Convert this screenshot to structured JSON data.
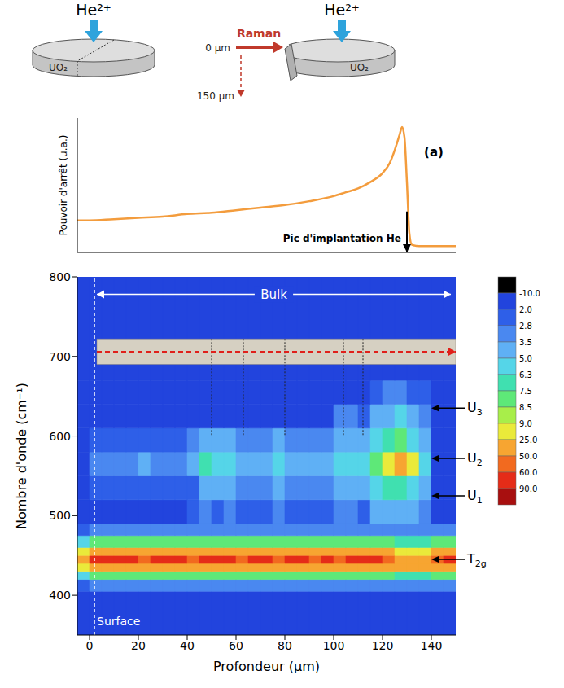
{
  "schematic": {
    "beam_label": "He²⁺",
    "sample_label": "UO₂",
    "probe_label": "Raman",
    "depth_start": "0 µm",
    "depth_end": "150 µm"
  },
  "chart_data": [
    {
      "type": "line",
      "y_label": "Pouvoir d'arrêt (u.a.)",
      "x": [
        -5,
        0,
        10,
        20,
        30,
        40,
        50,
        60,
        70,
        80,
        90,
        100,
        105,
        110,
        115,
        120,
        123,
        125,
        127,
        128,
        129,
        130,
        131,
        132,
        135,
        140,
        145,
        150
      ],
      "values": [
        0.25,
        0.25,
        0.26,
        0.27,
        0.28,
        0.3,
        0.31,
        0.33,
        0.35,
        0.37,
        0.4,
        0.44,
        0.47,
        0.5,
        0.55,
        0.62,
        0.7,
        0.8,
        0.92,
        0.98,
        0.9,
        0.55,
        0.15,
        0.06,
        0.05,
        0.05,
        0.05,
        0.05
      ],
      "color": "#f39c3d",
      "xlim": [
        -5,
        150
      ],
      "ylim": [
        0,
        1.05
      ],
      "xticks": [
        0,
        10,
        20,
        30,
        40,
        50,
        60,
        70,
        80,
        90,
        100,
        110,
        120,
        130,
        140,
        150
      ],
      "tick_labels": false,
      "annotations": [
        {
          "text": "(a)",
          "x": 141,
          "y": 0.75
        },
        {
          "text": "Pic d'implantation He",
          "x": 130,
          "y": 0.08,
          "arrow": [
            0.32,
            0
          ]
        }
      ]
    },
    {
      "type": "heatmap",
      "x_label": "Profondeur (µm)",
      "y_label": "Nombre d'onde (cm⁻¹)",
      "xlim": [
        -5,
        150
      ],
      "ylim": [
        350,
        800
      ],
      "xticks": [
        0,
        20,
        40,
        60,
        80,
        100,
        120,
        140
      ],
      "yticks": [
        400,
        500,
        600,
        700,
        800
      ],
      "x_edges": [
        -5,
        0,
        5,
        10,
        15,
        20,
        25,
        30,
        35,
        40,
        45,
        50,
        55,
        60,
        65,
        70,
        75,
        80,
        85,
        90,
        95,
        100,
        105,
        110,
        115,
        120,
        125,
        130,
        135,
        140,
        145,
        150
      ],
      "y_edges": [
        350,
        405,
        420,
        430,
        440,
        450,
        460,
        475,
        490,
        520,
        550,
        580,
        610,
        640,
        670,
        800
      ],
      "cells": [
        [
          1,
          1,
          1,
          1,
          1,
          1,
          1,
          1,
          1,
          1,
          1,
          1,
          1,
          1,
          1,
          1,
          1,
          1,
          1,
          1,
          1,
          1,
          1,
          1,
          1,
          1,
          1,
          1,
          1,
          1,
          1
        ],
        [
          2.5,
          3,
          3,
          3,
          3,
          3,
          3,
          3,
          3,
          3,
          3,
          3,
          3,
          3,
          3,
          3,
          3,
          3,
          3,
          3,
          3,
          3,
          3,
          3,
          3,
          3,
          3,
          3,
          3,
          3,
          3
        ],
        [
          5,
          8,
          8,
          8,
          8,
          8,
          8,
          8,
          8,
          8,
          8,
          8,
          8,
          8,
          8,
          8,
          8,
          8,
          8,
          8,
          8,
          8,
          8,
          8,
          8,
          8,
          7,
          7,
          7,
          8,
          8
        ],
        [
          20,
          30,
          30,
          30,
          30,
          30,
          30,
          30,
          30,
          30,
          30,
          30,
          30,
          30,
          30,
          30,
          30,
          30,
          30,
          30,
          30,
          30,
          30,
          30,
          30,
          30,
          25,
          25,
          25,
          30,
          30
        ],
        [
          40,
          70,
          70,
          70,
          70,
          55,
          70,
          70,
          70,
          55,
          70,
          70,
          70,
          55,
          70,
          70,
          55,
          70,
          70,
          55,
          70,
          55,
          70,
          70,
          60,
          55,
          45,
          40,
          45,
          55,
          60
        ],
        [
          20,
          30,
          30,
          30,
          30,
          30,
          30,
          30,
          30,
          30,
          30,
          30,
          30,
          30,
          30,
          30,
          30,
          30,
          30,
          30,
          30,
          30,
          30,
          30,
          30,
          30,
          22,
          22,
          22,
          30,
          30
        ],
        [
          5,
          8,
          8,
          8,
          8,
          8,
          8,
          8,
          8,
          8,
          8,
          8,
          8,
          8,
          8,
          8,
          8,
          8,
          8,
          8,
          8,
          8,
          8,
          8,
          8,
          8,
          7,
          7,
          7,
          8,
          8
        ],
        [
          2.5,
          3,
          3,
          3,
          3,
          3,
          3,
          3,
          3,
          3,
          3,
          3,
          3,
          3,
          3,
          3,
          3,
          3,
          3,
          3,
          3,
          3,
          3,
          3,
          3,
          3,
          3,
          3,
          3,
          3,
          3
        ],
        [
          1,
          1,
          1,
          1,
          1,
          1,
          1,
          1,
          1,
          2.5,
          3,
          2.5,
          3,
          2.5,
          2.5,
          2.5,
          3,
          2.5,
          2.5,
          2.5,
          2.5,
          3,
          3,
          2.5,
          3.5,
          3.5,
          3.5,
          3.5,
          3,
          1,
          1
        ],
        [
          1,
          2.2,
          2.2,
          2.2,
          2.2,
          2.2,
          2.2,
          2.2,
          2.2,
          2.5,
          4,
          3.5,
          4,
          3,
          3,
          3,
          4,
          3,
          3,
          3,
          3,
          4,
          4,
          3.5,
          5,
          6.3,
          7,
          6,
          4,
          1.5,
          1
        ],
        [
          1,
          3,
          3,
          3,
          3,
          3.5,
          3,
          3,
          3,
          4,
          6.5,
          5,
          6,
          4,
          4,
          4,
          5,
          4,
          4,
          4,
          4,
          5,
          5.5,
          5,
          8,
          20,
          30,
          12,
          5,
          1.5,
          1
        ],
        [
          1,
          2.5,
          2.5,
          2.5,
          2.5,
          2.5,
          2.5,
          2.5,
          2.5,
          3,
          4,
          3.5,
          4,
          3,
          3,
          3,
          3.5,
          3,
          3,
          3,
          3,
          3.5,
          4,
          3.5,
          5,
          6.5,
          8,
          6,
          3.5,
          1.5,
          1
        ],
        [
          1,
          1,
          1,
          1,
          1,
          1,
          1,
          1,
          1,
          1,
          1,
          1,
          1,
          1,
          1,
          1,
          1,
          1,
          1,
          1,
          1,
          2.8,
          3,
          2.5,
          3.5,
          4,
          5,
          4.5,
          3,
          1.5,
          1
        ],
        [
          1,
          1,
          1,
          1,
          1,
          1,
          1,
          1,
          1,
          1,
          1,
          1,
          1,
          1,
          1,
          1,
          1,
          1,
          1,
          1,
          1,
          1,
          1,
          1,
          2.2,
          2.8,
          2.8,
          2.5,
          2,
          1,
          1
        ],
        [
          1,
          1,
          1,
          1,
          1,
          1,
          1,
          1,
          1,
          1,
          1,
          1,
          1,
          1,
          1,
          1,
          1,
          1,
          1,
          1,
          1,
          1,
          1,
          1,
          1,
          1,
          1,
          1,
          1,
          1,
          1
        ]
      ],
      "colorbar": {
        "levels": [
          {
            "value": -10,
            "label": "-10.0"
          },
          {
            "value": 2,
            "label": "2.0"
          },
          2.8,
          3.5,
          {
            "value": 5,
            "label": "5.0"
          },
          6.3,
          7.5,
          8.5,
          {
            "value": 9,
            "label": "9.0"
          },
          {
            "value": 25,
            "label": "25.0"
          },
          {
            "value": 50,
            "label": "50.0"
          },
          {
            "value": 60,
            "label": "60.0"
          },
          {
            "value": 90,
            "label": "90.0"
          }
        ],
        "colors": [
          "#000000",
          "#2244dd",
          "#2e5fe8",
          "#4a88f0",
          "#5fb0f5",
          "#55d5e8",
          "#40e0b0",
          "#5ee878",
          "#a8ee4a",
          "#eaea3a",
          "#f7a531",
          "#f26a1f",
          "#e52c18",
          "#a80f0f"
        ]
      },
      "annotations": [
        {
          "text": "Bulk",
          "x": [
            3,
            148
          ],
          "y": 778
        },
        {
          "text": "Surface",
          "x": 3,
          "y": 362
        }
      ],
      "surface_depth": 2,
      "micrograph": {
        "depth_range": [
          3,
          150
        ],
        "wavenumber_range": [
          690,
          722
        ]
      },
      "grain_boundaries": {
        "depths": [
          50,
          63,
          80,
          104,
          112
        ],
        "down_to": 600
      },
      "band_labels": [
        {
          "text": "U3",
          "y": 635
        },
        {
          "text": "U2",
          "y": 572
        },
        {
          "text": "U1",
          "y": 525
        },
        {
          "text": "T2g",
          "y": 445
        }
      ]
    }
  ]
}
